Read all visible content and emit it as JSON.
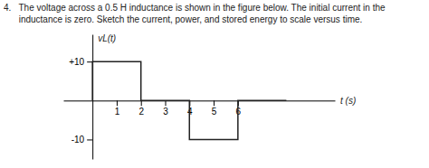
{
  "chart_data": {
    "type": "line",
    "title": "4.   The voltage across a 0.5 H inductance is shown in the figure below. The initial current in the",
    "subtitle": "      inductance is zero. Sketch the current, power, and stored energy to scale versus time.",
    "xlabel": "t (s)",
    "ylabel": "vL(t)",
    "x": [
      0,
      0,
      2,
      2,
      4,
      4,
      6,
      6,
      8
    ],
    "values": [
      0,
      10,
      10,
      0,
      0,
      -10,
      -10,
      0,
      0
    ],
    "color": "#222222",
    "xlim": [
      -1.2,
      10
    ],
    "ylim": [
      -15,
      17
    ],
    "xticks": [
      1,
      2,
      3,
      4,
      5,
      6
    ],
    "yticks": [
      -10,
      {
        "value": 10,
        "label": "+10"
      }
    ],
    "grid": false
  }
}
